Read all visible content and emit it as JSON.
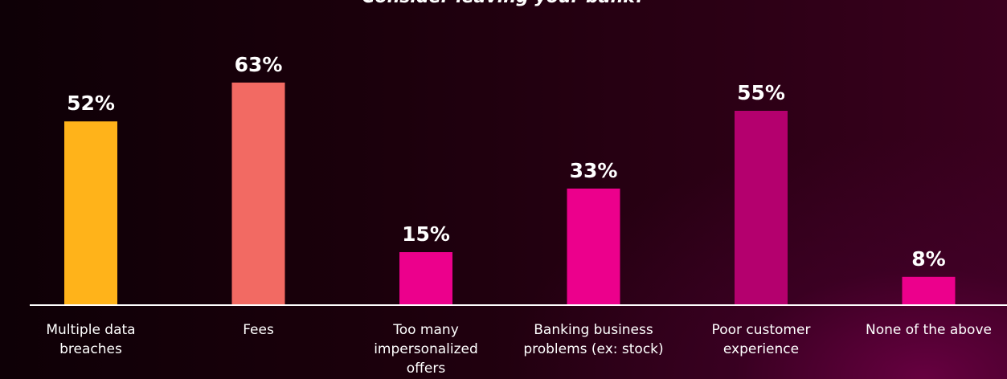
{
  "chart_data": {
    "type": "bar",
    "title": "Consider leaving your bank?",
    "categories": [
      [
        "Multiple data",
        "breaches"
      ],
      [
        "Fees"
      ],
      [
        "Too many",
        "impersonalized",
        "offers"
      ],
      [
        "Banking business",
        "problems (ex: stock)"
      ],
      [
        "Poor customer",
        "experience"
      ],
      [
        "None of the above"
      ]
    ],
    "values": [
      52,
      63,
      15,
      33,
      55,
      8
    ],
    "value_labels": [
      "52%",
      "63%",
      "15%",
      "33%",
      "55%",
      "8%"
    ],
    "colors": [
      "#ffb31a",
      "#f26a63",
      "#ec008c",
      "#ec008c",
      "#b4006e",
      "#ec008c"
    ],
    "ylim": [
      0,
      70
    ],
    "xlabel": "",
    "ylabel": "",
    "grid": false,
    "legend": "none"
  }
}
